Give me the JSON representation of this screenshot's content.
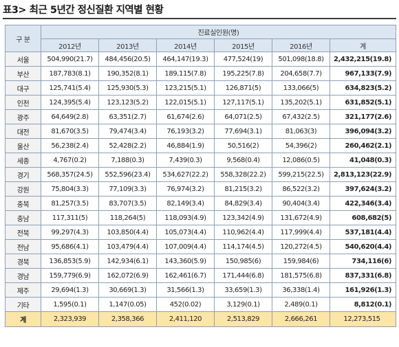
{
  "title": "표3> 최근 5년간 정신질환 지역별 현황",
  "table": {
    "group_header": "구  분",
    "span_header": "진료실인원(명)",
    "years": [
      "2012년",
      "2013년",
      "2014년",
      "2015년",
      "2016년"
    ],
    "total_header": "계",
    "rows": [
      {
        "region": "서울",
        "values": [
          "504,990(21.7)",
          "484,456(20.5)",
          "464,147(19.3)",
          "477,524(19)",
          "501,098(18.8)"
        ],
        "total": "2,432,215(19.8)"
      },
      {
        "region": "부산",
        "values": [
          "187,783(8.1)",
          "190,352(8.1)",
          "189,115(7.8)",
          "195,225(7.8)",
          "204,658(7.7)"
        ],
        "total": "967,133(7.9)"
      },
      {
        "region": "대구",
        "values": [
          "125,741(5.4)",
          "125,930(5.3)",
          "123,215(5.1)",
          "126,871(5)",
          "133,066(5)"
        ],
        "total": "634,823(5.2)"
      },
      {
        "region": "인천",
        "values": [
          "124,395(5.4)",
          "123,123(5.2)",
          "122,015(5.1)",
          "127,117(5.1)",
          "135,202(5.1)"
        ],
        "total": "631,852(5.1)"
      },
      {
        "region": "광주",
        "values": [
          "64,649(2.8)",
          "63,351(2.7)",
          "61,674(2.6)",
          "64,071(2.5)",
          "67,432(2.5)"
        ],
        "total": "321,177(2.6)"
      },
      {
        "region": "대전",
        "values": [
          "81,670(3.5)",
          "79,474(3.4)",
          "76,193(3.2)",
          "77,694(3.1)",
          "81,063(3)"
        ],
        "total": "396,094(3.2)"
      },
      {
        "region": "울산",
        "values": [
          "56,238(2.4)",
          "52,428(2.2)",
          "46,884(1.9)",
          "50,516(2)",
          "54,396(2)"
        ],
        "total": "260,462(2.1)"
      },
      {
        "region": "세종",
        "values": [
          "4,767(0.2)",
          "7,188(0.3)",
          "7,439(0.3)",
          "9,568(0.4)",
          "12,086(0.5)"
        ],
        "total": "41,048(0.3)"
      },
      {
        "region": "경기",
        "values": [
          "568,357(24.5)",
          "552,596(23.4)",
          "534,627(22.2)",
          "558,328(22.2)",
          "599,215(22.5)"
        ],
        "total": "2,813,123(22.9)"
      },
      {
        "region": "강원",
        "values": [
          "75,804(3.3)",
          "77,109(3.3)",
          "76,974(3.2)",
          "81,215(3.2)",
          "86,522(3.2)"
        ],
        "total": "397,624(3.2)"
      },
      {
        "region": "충북",
        "values": [
          "81,257(3.5)",
          "83,707(3.5)",
          "82,149(3.4)",
          "84,829(3.4)",
          "90,404(3.4)"
        ],
        "total": "422,346(3.4)"
      },
      {
        "region": "충남",
        "values": [
          "117,311(5)",
          "118,264(5)",
          "118,093(4.9)",
          "123,342(4.9)",
          "131,672(4.9)"
        ],
        "total": "608,682(5)"
      },
      {
        "region": "전북",
        "values": [
          "99,297(4.3)",
          "103,850(4.4)",
          "105,073(4.4)",
          "110,962(4.4)",
          "117,999(4.4)"
        ],
        "total": "537,181(4.4)"
      },
      {
        "region": "전남",
        "values": [
          "95,686(4.1)",
          "103,479(4.4)",
          "107,009(4.4)",
          "114,174(4.5)",
          "120,272(4.5)"
        ],
        "total": "540,620(4.4)"
      },
      {
        "region": "경북",
        "values": [
          "136,853(5.9)",
          "142,934(6.1)",
          "143,360(5.9)",
          "150,985(6)",
          "159,984(6)"
        ],
        "total": "734,116(6)"
      },
      {
        "region": "경남",
        "values": [
          "159,779(6.9)",
          "162,072(6.9)",
          "162,461(6.7)",
          "171,444(6.8)",
          "181,575(6.8)"
        ],
        "total": "837,331(6.8)"
      },
      {
        "region": "제주",
        "values": [
          "29,694(1.3)",
          "30,669(1.3)",
          "31,566(1.3)",
          "33,659(1.3)",
          "36,338(1.4)"
        ],
        "total": "161,926(1.3)"
      },
      {
        "region": "기타",
        "values": [
          "1,595(0.1)",
          "1,147(0.05)",
          "452(0.02)",
          "3,129(0.1)",
          "2,489(0.1)"
        ],
        "total": "8,812(0.1)"
      }
    ],
    "sum_row": {
      "region": "계",
      "values": [
        "2,323,939",
        "2,358,366",
        "2,411,120",
        "2,513,829",
        "2,666,261"
      ],
      "total": "12,273,515"
    }
  }
}
